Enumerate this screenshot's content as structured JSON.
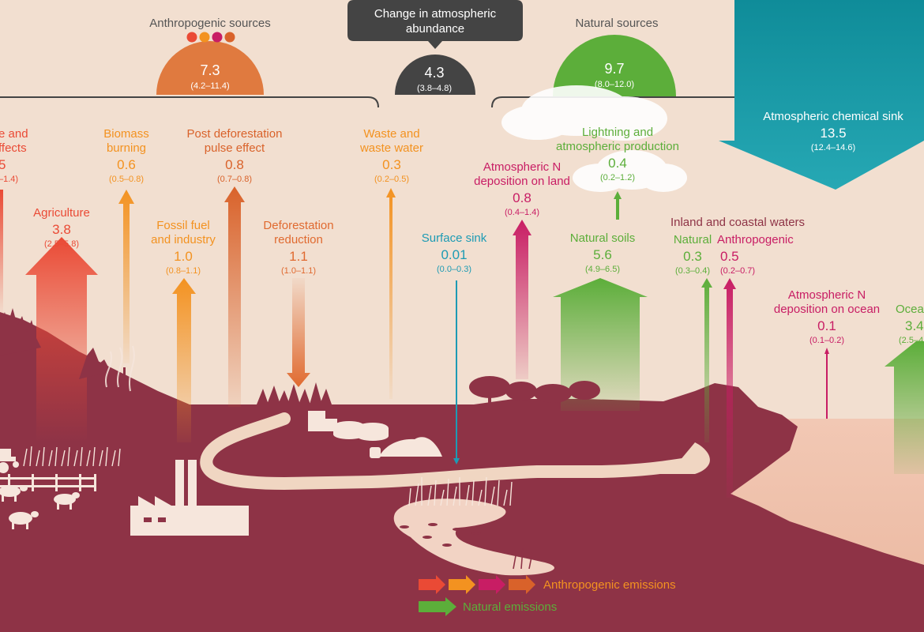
{
  "colors": {
    "background": "#f2dfd0",
    "land": "#8e3346",
    "anthropogenic_orange": "#e07a3f",
    "natural_green": "#5cae3a",
    "sink_teal": "#1c98a6",
    "change_dark": "#444444",
    "agriculture_red": "#ea4a35",
    "magenta": "#c81d64",
    "fossil_orange": "#f39220",
    "surface_blue": "#1d9bb4"
  },
  "headers": {
    "anthropogenic_sources": "Anthropogenic sources",
    "natural_sources": "Natural sources",
    "change_callout": "Change in atmospheric abundance"
  },
  "totals": {
    "anthropogenic": {
      "value": "7.3",
      "range": "(4.2–11.4)"
    },
    "change": {
      "value": "4.3",
      "range": "(3.8–4.8)"
    },
    "natural": {
      "value": "9.7",
      "range": "(8.0–12.0)"
    }
  },
  "sink": {
    "title": "Atmospheric chemical sink",
    "value": "13.5",
    "range": "(12.4–14.6)"
  },
  "flows": {
    "climate_effects": {
      "title_line1": "e and",
      "title_line2": "ffects",
      "value": "5",
      "range": "–1.4)"
    },
    "agriculture": {
      "title": "Agriculture",
      "value": "3.8",
      "range": "(2.5–5.8)"
    },
    "biomass": {
      "title_line1": "Biomass",
      "title_line2": "burning",
      "value": "0.6",
      "range": "(0.5–0.8)"
    },
    "fossil": {
      "title_line1": "Fossil fuel",
      "title_line2": "and industry",
      "value": "1.0",
      "range": "(0.8–1.1)"
    },
    "post_deforestation": {
      "title_line1": "Post deforestation",
      "title_line2": "pulse effect",
      "value": "0.8",
      "range": "(0.7–0.8)"
    },
    "deforestation_reduction": {
      "title_line1": "Deforestation",
      "title_line2": "reduction",
      "value": "1.1",
      "range": "(1.0–1.1)"
    },
    "waste": {
      "title_line1": "Waste and",
      "title_line2": "waste water",
      "value": "0.3",
      "range": "(0.2–0.5)"
    },
    "surface_sink": {
      "title": "Surface sink",
      "value": "0.01",
      "range": "(0.0–0.3)"
    },
    "n_dep_land": {
      "title_line1": "Atmospheric N",
      "title_line2": "deposition on land",
      "value": "0.8",
      "range": "(0.4–1.4)"
    },
    "lightning": {
      "title_line1": "Lightning and",
      "title_line2": "atmospheric production",
      "value": "0.4",
      "range": "(0.2–1.2)"
    },
    "natural_soils": {
      "title": "Natural soils",
      "value": "5.6",
      "range": "(4.9–6.5)"
    },
    "inland": {
      "title": "Inland and coastal waters",
      "natural": {
        "title": "Natural",
        "value": "0.3",
        "range": "(0.3–0.4)"
      },
      "anthropogenic": {
        "title": "Anthropogenic",
        "value": "0.5",
        "range": "(0.2–0.7)"
      }
    },
    "n_dep_ocean": {
      "title_line1": "Atmospheric N",
      "title_line2": "deposition on ocean",
      "value": "0.1",
      "range": "(0.1–0.2)"
    },
    "ocean": {
      "title": "Ocea",
      "value": "3.4",
      "range": "(2.5–4"
    }
  },
  "legend": {
    "anthropogenic": "Anthropogenic emissions",
    "natural": "Natural emissions"
  }
}
